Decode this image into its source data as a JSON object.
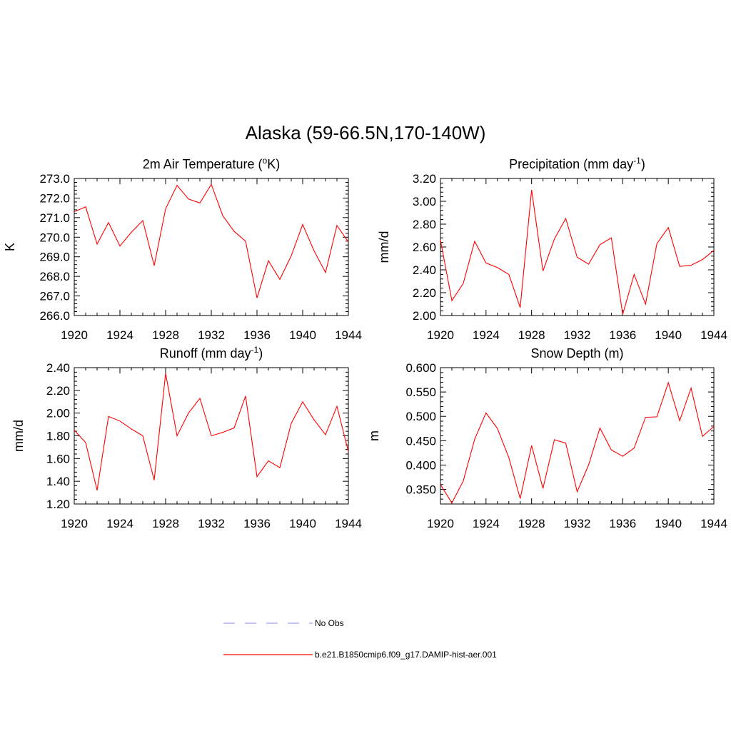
{
  "title": "Alaska (59-66.5N,170-140W)",
  "legend": [
    {
      "label": "No Obs",
      "color": "#9f9fe8",
      "dash": true
    },
    {
      "label": "b.e21.B1850cmip6.f09_g17.DAMIP-hist-aer.001",
      "color": "#ff0000",
      "dash": false
    }
  ],
  "chart_data": [
    {
      "type": "line",
      "title": "2m Air Temperature (",
      "title_sup": "o",
      "title_tail": "K)",
      "xlabel": "",
      "ylabel": "K",
      "xlim": [
        1920,
        1944
      ],
      "ylim": [
        266.0,
        273.0
      ],
      "xticks": [
        "1920",
        "1924",
        "1928",
        "1932",
        "1936",
        "1940",
        "1944"
      ],
      "yticks": [
        "266.0",
        "267.0",
        "268.0",
        "269.0",
        "270.0",
        "271.0",
        "272.0",
        "273.0"
      ],
      "series": [
        {
          "color": "#ff0000",
          "x": [
            1920,
            1921,
            1922,
            1923,
            1924,
            1925,
            1926,
            1927,
            1928,
            1929,
            1930,
            1931,
            1932,
            1933,
            1934,
            1935,
            1936,
            1937,
            1938,
            1939,
            1940,
            1941,
            1942,
            1943,
            1944
          ],
          "y": [
            271.3,
            271.55,
            269.65,
            270.75,
            269.55,
            270.25,
            270.85,
            268.55,
            271.45,
            272.65,
            271.95,
            271.75,
            272.7,
            271.1,
            270.3,
            269.8,
            266.9,
            268.8,
            267.85,
            269.05,
            270.65,
            269.3,
            268.2,
            270.6,
            269.75
          ]
        }
      ]
    },
    {
      "type": "line",
      "title": "Precipitation (mm day",
      "title_sup": "-1",
      "title_tail": ")",
      "xlabel": "",
      "ylabel": "mm/d",
      "xlim": [
        1920,
        1944
      ],
      "ylim": [
        2.0,
        3.2
      ],
      "xticks": [
        "1920",
        "1924",
        "1928",
        "1932",
        "1936",
        "1940",
        "1944"
      ],
      "yticks": [
        "2.00",
        "2.20",
        "2.40",
        "2.60",
        "2.80",
        "3.00",
        "3.20"
      ],
      "series": [
        {
          "color": "#ff0000",
          "x": [
            1920,
            1921,
            1922,
            1923,
            1924,
            1925,
            1926,
            1927,
            1928,
            1929,
            1930,
            1931,
            1932,
            1933,
            1934,
            1935,
            1936,
            1937,
            1938,
            1939,
            1940,
            1941,
            1942,
            1943,
            1944
          ],
          "y": [
            2.66,
            2.13,
            2.28,
            2.65,
            2.46,
            2.42,
            2.36,
            2.07,
            3.1,
            2.39,
            2.67,
            2.85,
            2.51,
            2.45,
            2.62,
            2.68,
            2.01,
            2.36,
            2.1,
            2.63,
            2.77,
            2.43,
            2.44,
            2.49,
            2.57
          ]
        }
      ]
    },
    {
      "type": "line",
      "title": "Runoff (mm day",
      "title_sup": "-1",
      "title_tail": ")",
      "xlabel": "",
      "ylabel": "mm/d",
      "xlim": [
        1920,
        1944
      ],
      "ylim": [
        1.2,
        2.4
      ],
      "xticks": [
        "1920",
        "1924",
        "1928",
        "1932",
        "1936",
        "1940",
        "1944"
      ],
      "yticks": [
        "1.20",
        "1.40",
        "1.60",
        "1.80",
        "2.00",
        "2.20",
        "2.40"
      ],
      "series": [
        {
          "color": "#ff0000",
          "x": [
            1920,
            1921,
            1922,
            1923,
            1924,
            1925,
            1926,
            1927,
            1928,
            1929,
            1930,
            1931,
            1932,
            1933,
            1934,
            1935,
            1936,
            1937,
            1938,
            1939,
            1940,
            1941,
            1942,
            1943,
            1944
          ],
          "y": [
            1.85,
            1.74,
            1.32,
            1.97,
            1.93,
            1.86,
            1.8,
            1.41,
            2.35,
            1.8,
            2.0,
            2.13,
            1.8,
            1.83,
            1.87,
            2.15,
            1.44,
            1.58,
            1.52,
            1.91,
            2.1,
            1.94,
            1.81,
            2.06,
            1.66
          ]
        }
      ]
    },
    {
      "type": "line",
      "title": "Snow Depth (m)",
      "title_sup": "",
      "title_tail": "",
      "xlabel": "",
      "ylabel": "m",
      "xlim": [
        1920,
        1944
      ],
      "ylim": [
        0.32,
        0.6
      ],
      "xticks": [
        "1920",
        "1924",
        "1928",
        "1932",
        "1936",
        "1940",
        "1944"
      ],
      "yticks": [
        "0.350",
        "0.400",
        "0.450",
        "0.500",
        "0.550",
        "0.600"
      ],
      "series": [
        {
          "color": "#ff0000",
          "x": [
            1920,
            1921,
            1922,
            1923,
            1924,
            1925,
            1926,
            1927,
            1928,
            1929,
            1930,
            1931,
            1932,
            1933,
            1934,
            1935,
            1936,
            1937,
            1938,
            1939,
            1940,
            1941,
            1942,
            1943,
            1944
          ],
          "y": [
            0.36,
            0.322,
            0.367,
            0.453,
            0.507,
            0.475,
            0.415,
            0.331,
            0.44,
            0.352,
            0.452,
            0.445,
            0.345,
            0.4,
            0.476,
            0.431,
            0.418,
            0.435,
            0.498,
            0.499,
            0.569,
            0.491,
            0.558,
            0.459,
            0.479
          ]
        }
      ]
    }
  ]
}
